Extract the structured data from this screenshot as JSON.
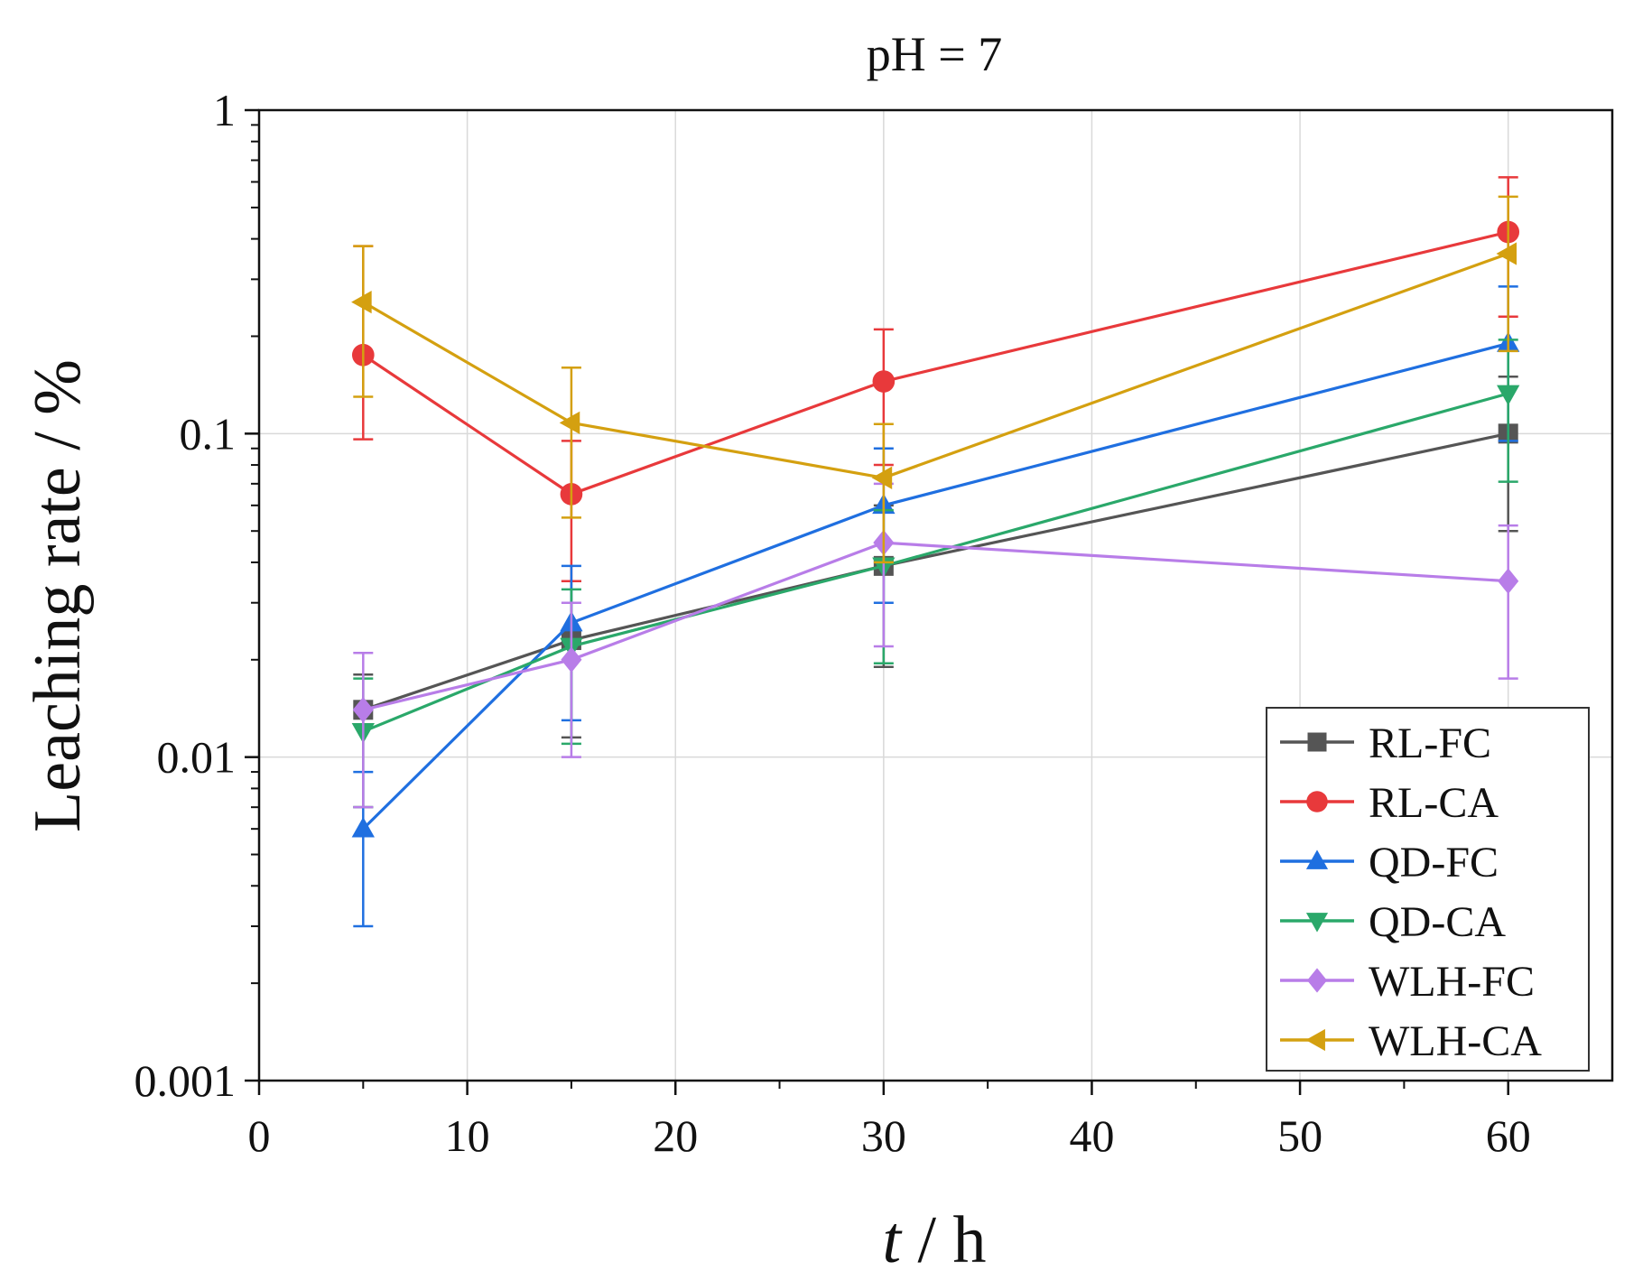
{
  "chart_data": {
    "type": "line",
    "title": "pH = 7",
    "xlabel_italic": "t",
    "xlabel_rest": " / h",
    "ylabel": "Leaching rate / %",
    "xlim": [
      0,
      65
    ],
    "ylim": [
      0.001,
      1
    ],
    "yscale": "log",
    "xticks": [
      0,
      10,
      20,
      30,
      40,
      50,
      60
    ],
    "xtick_labels": [
      "0",
      "10",
      "20",
      "30",
      "40",
      "50",
      "60"
    ],
    "yticks": [
      0.001,
      0.01,
      0.1,
      1
    ],
    "ytick_labels": [
      "0.001",
      "0.01",
      "0.1",
      "1"
    ],
    "grid": true,
    "legend_position": "bottom-right",
    "x": [
      5,
      15,
      30,
      60
    ],
    "series": [
      {
        "name": "RL-FC",
        "color": "#555555",
        "marker": "square",
        "values": [
          0.014,
          0.023,
          0.039,
          0.1
        ],
        "err_low": [
          0.007,
          0.0115,
          0.019,
          0.05
        ],
        "err_high": [
          0.018,
          0.035,
          0.06,
          0.15
        ]
      },
      {
        "name": "RL-CA",
        "color": "#e8393b",
        "marker": "circle",
        "values": [
          0.175,
          0.065,
          0.145,
          0.42
        ],
        "err_low": [
          0.096,
          0.035,
          0.08,
          0.23
        ],
        "err_high": [
          0.38,
          0.095,
          0.21,
          0.62
        ]
      },
      {
        "name": "QD-FC",
        "color": "#1f6fe0",
        "marker": "triangle-up",
        "values": [
          0.006,
          0.026,
          0.06,
          0.19
        ],
        "err_low": [
          0.003,
          0.013,
          0.03,
          0.095
        ],
        "err_high": [
          0.009,
          0.039,
          0.09,
          0.285
        ]
      },
      {
        "name": "QD-CA",
        "color": "#2aa86a",
        "marker": "triangle-down",
        "values": [
          0.012,
          0.022,
          0.039,
          0.133
        ],
        "err_low": [
          0.007,
          0.011,
          0.0195,
          0.071
        ],
        "err_high": [
          0.0175,
          0.033,
          0.058,
          0.195
        ]
      },
      {
        "name": "WLH-FC",
        "color": "#b87de8",
        "marker": "diamond",
        "values": [
          0.014,
          0.02,
          0.046,
          0.035
        ],
        "err_low": [
          0.007,
          0.01,
          0.022,
          0.0175
        ],
        "err_high": [
          0.021,
          0.03,
          0.07,
          0.052
        ]
      },
      {
        "name": "WLH-CA",
        "color": "#d4a010",
        "marker": "triangle-left",
        "values": [
          0.255,
          0.108,
          0.073,
          0.36
        ],
        "err_low": [
          0.13,
          0.055,
          0.04,
          0.18
        ],
        "err_high": [
          0.38,
          0.16,
          0.107,
          0.54
        ]
      }
    ]
  }
}
